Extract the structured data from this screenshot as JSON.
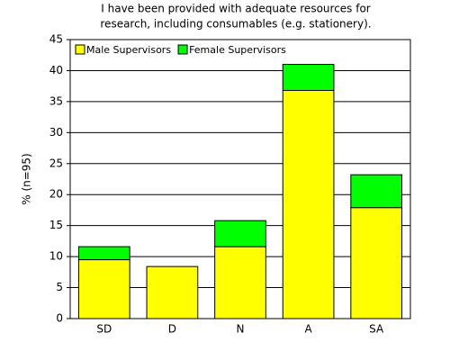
{
  "chart_data": {
    "type": "stacked_bar",
    "title": [
      "I have been provided with adequate resources for",
      "research, including consumables (e.g. stationery)."
    ],
    "y_label": "% (n=95)",
    "categories": [
      "SD",
      "D",
      "N",
      "A",
      "SA"
    ],
    "series": [
      {
        "name": "Male Supervisors",
        "color": "#ffff00",
        "values": [
          9.5,
          8.4,
          11.6,
          36.8,
          17.9
        ]
      },
      {
        "name": "Female Supervisors",
        "color": "#00ff00",
        "values": [
          2.1,
          0,
          4.2,
          4.2,
          5.3
        ]
      }
    ],
    "ylim": [
      0,
      45
    ],
    "yticks": [
      0,
      5,
      10,
      15,
      20,
      25,
      30,
      35,
      40,
      45
    ],
    "grid": true,
    "legend": "top-left"
  }
}
